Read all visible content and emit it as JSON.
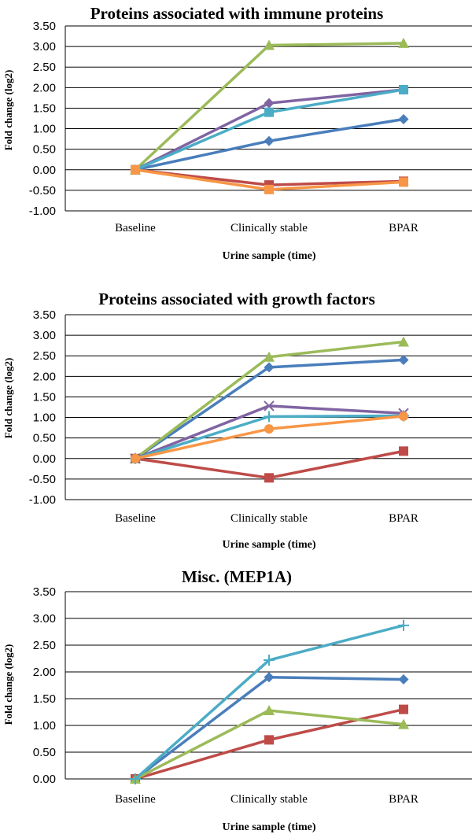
{
  "chart_data": [
    {
      "type": "line",
      "title": "Proteins associated with immune proteins",
      "xlabel": "Urine sample (time)",
      "ylabel": "Fold change (log2)",
      "categories": [
        "Baseline",
        "Clinically stable",
        "BPAR"
      ],
      "ylim": [
        -1.0,
        3.5
      ],
      "yticks": [
        "-1.00",
        "-0.50",
        "0.00",
        "0.50",
        "1.00",
        "1.50",
        "2.00",
        "2.50",
        "3.00",
        "3.50"
      ],
      "grid": true,
      "series": [
        {
          "name": "series-blue-diamond",
          "color": "#4A7EBB",
          "marker": "diamond",
          "values": [
            0,
            0.7,
            1.23
          ]
        },
        {
          "name": "series-red-square",
          "color": "#BE4B48",
          "marker": "square",
          "values": [
            0,
            -0.37,
            -0.28
          ]
        },
        {
          "name": "series-green-triangle",
          "color": "#9BBB59",
          "marker": "triangle",
          "values": [
            0,
            3.03,
            3.08
          ]
        },
        {
          "name": "series-purple-diamond",
          "color": "#8064A2",
          "marker": "diamond",
          "values": [
            0,
            1.62,
            1.95
          ]
        },
        {
          "name": "series-cyan-square",
          "color": "#4BACC6",
          "marker": "square",
          "values": [
            0,
            1.4,
            1.95
          ]
        },
        {
          "name": "series-orange-square",
          "color": "#F79646",
          "marker": "square",
          "values": [
            0,
            -0.48,
            -0.3
          ]
        }
      ]
    },
    {
      "type": "line",
      "title": "Proteins associated with growth factors",
      "xlabel": "Urine sample (time)",
      "ylabel": "Fold change (log2)",
      "categories": [
        "Baseline",
        "Clinically stable",
        "BPAR"
      ],
      "ylim": [
        -1.0,
        3.5
      ],
      "yticks": [
        "-1.00",
        "-0.50",
        "0.00",
        "0.50",
        "1.00",
        "1.50",
        "2.00",
        "2.50",
        "3.00",
        "3.50"
      ],
      "grid": true,
      "series": [
        {
          "name": "series-blue-diamond",
          "color": "#4A7EBB",
          "marker": "diamond",
          "values": [
            0,
            2.22,
            2.4
          ]
        },
        {
          "name": "series-red-square",
          "color": "#BE4B48",
          "marker": "square",
          "values": [
            0,
            -0.47,
            0.18
          ]
        },
        {
          "name": "series-green-triangle",
          "color": "#9BBB59",
          "marker": "triangle",
          "values": [
            0,
            2.47,
            2.84
          ]
        },
        {
          "name": "series-purple-x",
          "color": "#8064A2",
          "marker": "x",
          "values": [
            0,
            1.28,
            1.1
          ]
        },
        {
          "name": "series-teal-plus",
          "color": "#4BACC6",
          "marker": "plus",
          "values": [
            0,
            1.02,
            1.04
          ]
        },
        {
          "name": "series-orange-circle",
          "color": "#F79646",
          "marker": "circle",
          "values": [
            0,
            0.72,
            1.03
          ]
        }
      ]
    },
    {
      "type": "line",
      "title": "Misc. (MEP1A)",
      "xlabel": "Urine sample (time)",
      "ylabel": "Fold change (log2)",
      "categories": [
        "Baseline",
        "Clinically stable",
        "BPAR"
      ],
      "ylim": [
        0.0,
        3.5
      ],
      "yticks": [
        "0.00",
        "0.50",
        "1.00",
        "1.50",
        "2.00",
        "2.50",
        "3.00",
        "3.50"
      ],
      "grid": true,
      "series": [
        {
          "name": "series-blue-diamond",
          "color": "#4A7EBB",
          "marker": "diamond",
          "values": [
            0,
            1.9,
            1.86
          ]
        },
        {
          "name": "series-red-square",
          "color": "#BE4B48",
          "marker": "square",
          "values": [
            0,
            0.73,
            1.3
          ]
        },
        {
          "name": "series-green-triangle",
          "color": "#9BBB59",
          "marker": "triangle",
          "values": [
            0,
            1.28,
            1.02
          ]
        },
        {
          "name": "series-cyan-plus",
          "color": "#4BACC6",
          "marker": "plus",
          "values": [
            0,
            2.22,
            2.87
          ]
        }
      ]
    }
  ]
}
